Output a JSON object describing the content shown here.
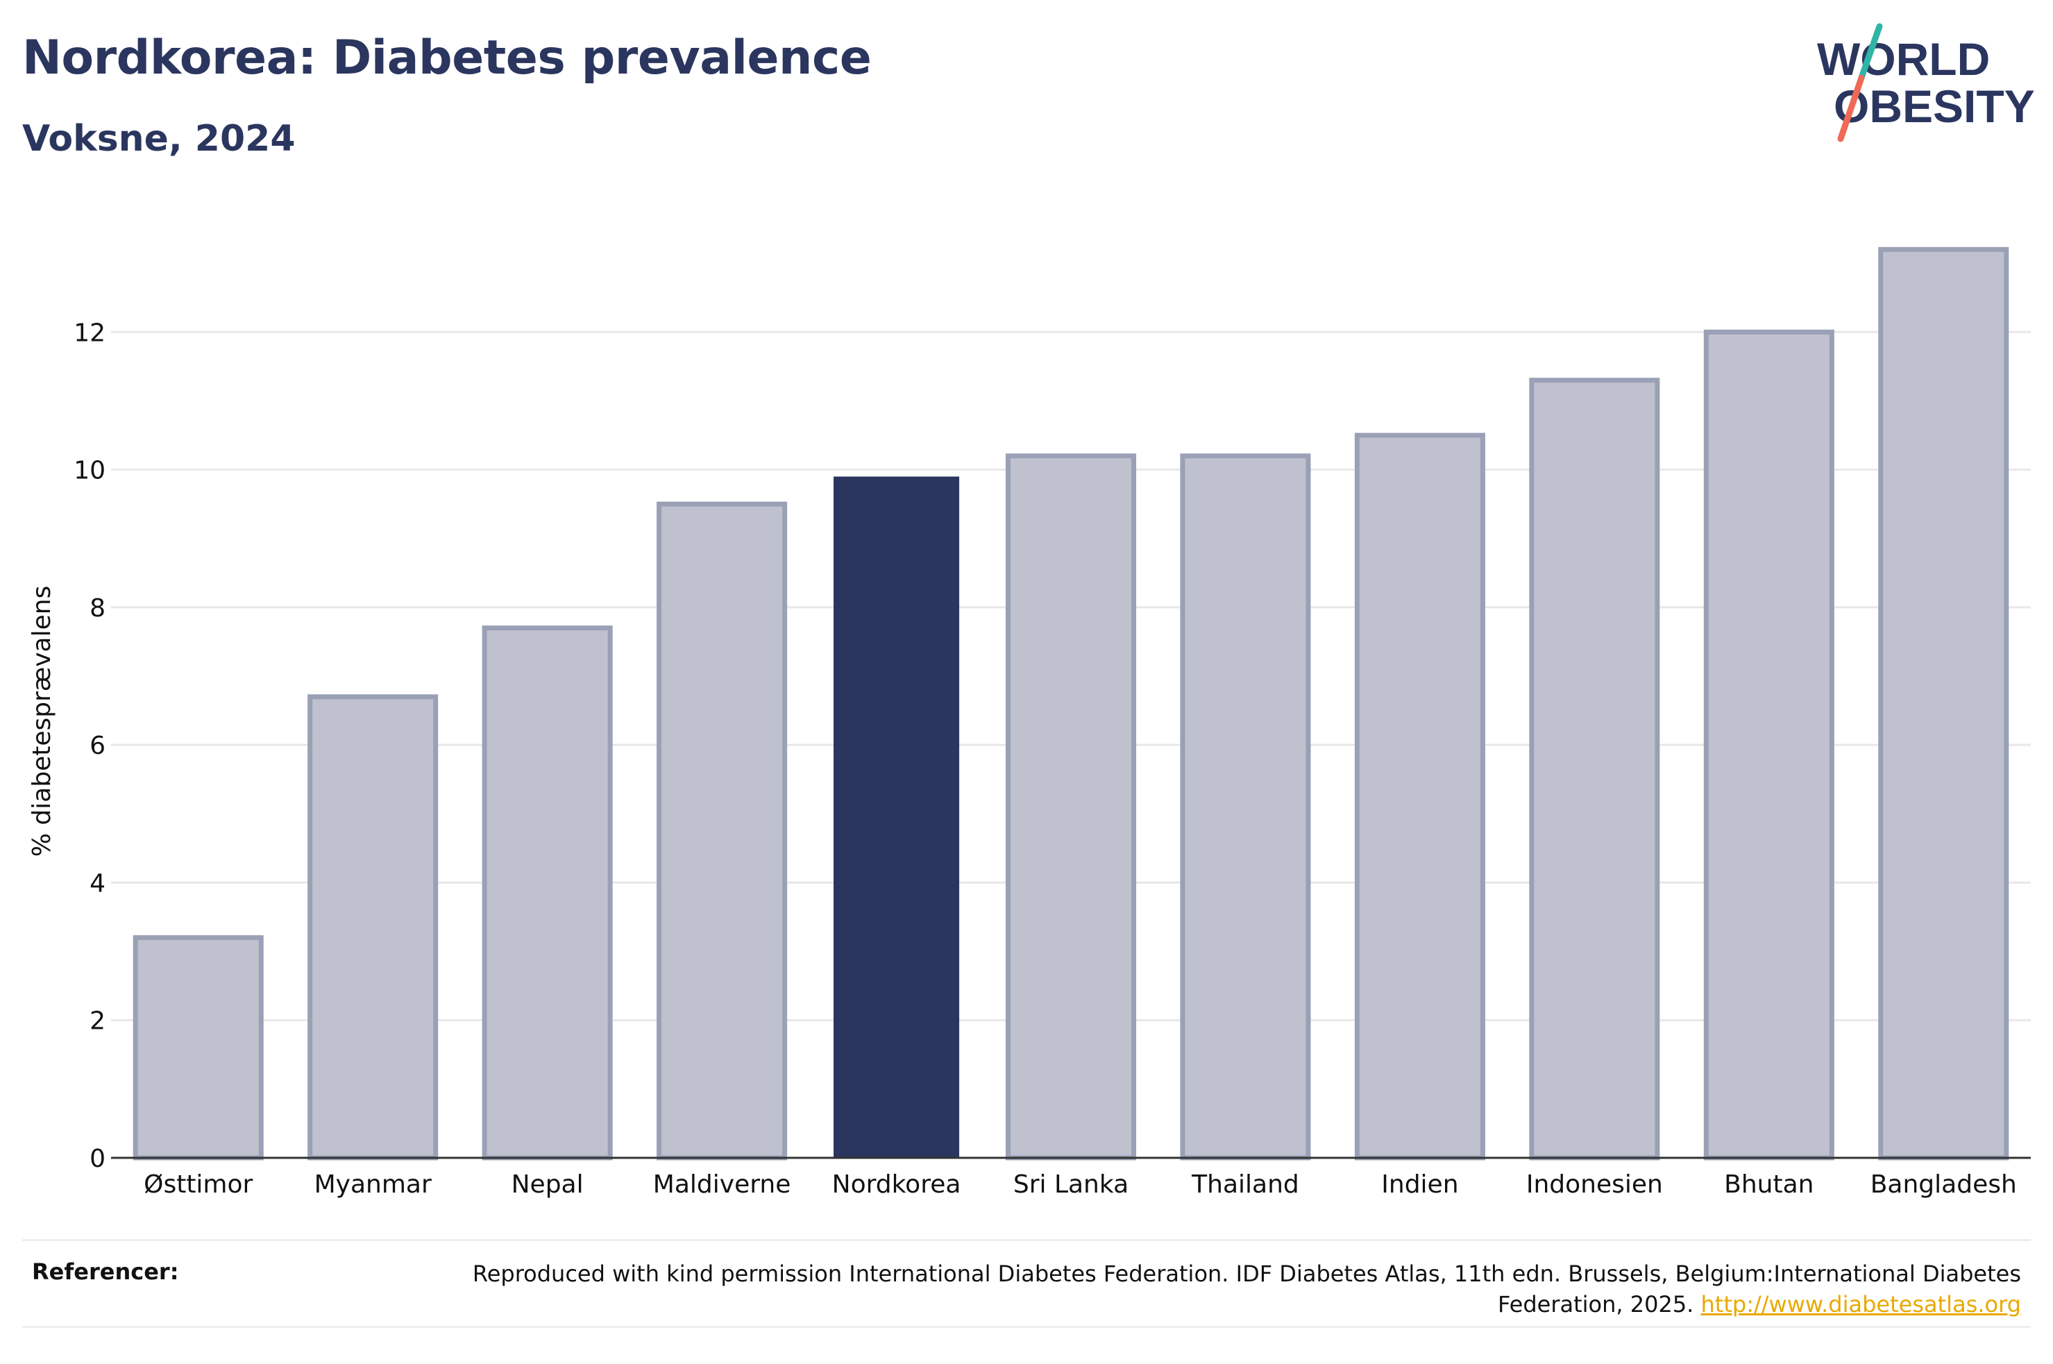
{
  "header": {
    "title": "Nordkorea: Diabetes prevalence",
    "subtitle": "Voksne, 2024"
  },
  "logo": {
    "line1": "WORLD",
    "line2": "OBESITY",
    "colors": {
      "text": "#2b365f",
      "slash_top": "#2fb5a6",
      "slash_bottom": "#ee6a57"
    }
  },
  "colors": {
    "highlight_bar": "#2b365f",
    "other_bar_fill": "#bfc2ce",
    "other_bar_stroke": "#9aa0b5",
    "grid": "#e8e8e8",
    "axis": "#333333",
    "link": "#e8a900"
  },
  "chart_data": {
    "type": "bar",
    "title": "Nordkorea: Diabetes prevalence",
    "subtitle": "Voksne, 2024",
    "xlabel": "",
    "ylabel": "% diabetesprævalens",
    "categories": [
      "Østtimor",
      "Myanmar",
      "Nepal",
      "Maldiverne",
      "Nordkorea",
      "Sri Lanka",
      "Thailand",
      "Indien",
      "Indonesien",
      "Bhutan",
      "Bangladesh"
    ],
    "values": [
      3.2,
      6.7,
      7.7,
      9.5,
      9.9,
      10.2,
      10.2,
      10.5,
      11.3,
      12.0,
      13.2
    ],
    "highlight": "Nordkorea",
    "ylim": [
      0,
      13.9
    ],
    "yticks": [
      0,
      2,
      4,
      6,
      8,
      10,
      12
    ],
    "grid": true,
    "legend": "none"
  },
  "footer": {
    "label": "Referencer:",
    "text": "Reproduced with kind permission International Diabetes Federation. IDF Diabetes Atlas, 11th edn. Brussels, Belgium:International Diabetes Federation, 2025.",
    "link": "http://www.diabetesatlas.org"
  }
}
